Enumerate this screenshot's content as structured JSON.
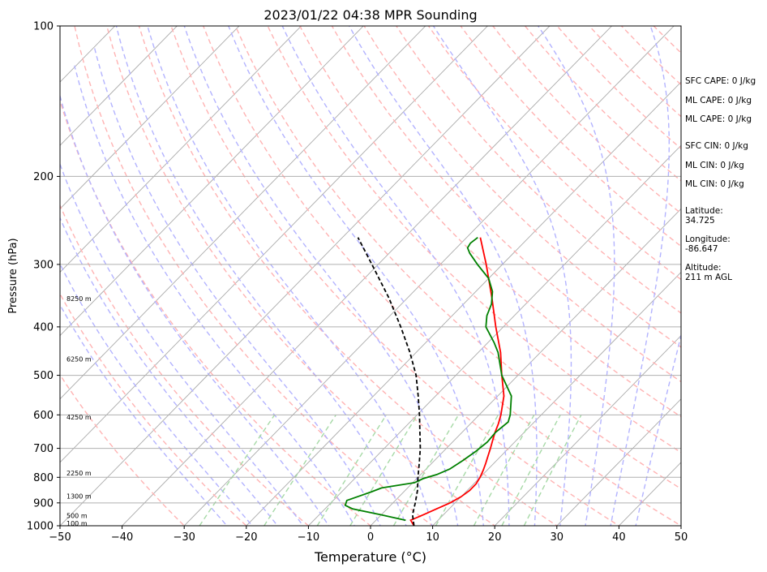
{
  "chart_data": {
    "type": "line",
    "title": "2023/01/22 04:38 MPR Sounding",
    "xlabel": "Temperature (°C)",
    "ylabel": "Pressure (hPa)",
    "xlim": [
      -50,
      50
    ],
    "ylim": [
      1000,
      100
    ],
    "yscale": "log",
    "x_ticks": [
      -50,
      -40,
      -30,
      -20,
      -10,
      0,
      10,
      20,
      30,
      40,
      50
    ],
    "y_ticks": [
      100,
      200,
      300,
      400,
      500,
      600,
      700,
      800,
      900,
      1000
    ],
    "grid": "horizontal at pressure ticks",
    "series": [
      {
        "color": "#ff0000",
        "points": [
          [
            1000,
            7.0
          ],
          [
            975,
            5.6
          ],
          [
            950,
            6.8
          ],
          [
            925,
            8.0
          ],
          [
            900,
            9.2
          ],
          [
            875,
            10.0
          ],
          [
            850,
            10.4
          ],
          [
            825,
            10.4
          ],
          [
            800,
            10.0
          ],
          [
            775,
            9.4
          ],
          [
            750,
            8.7
          ],
          [
            725,
            7.9
          ],
          [
            700,
            7.1
          ],
          [
            675,
            6.2
          ],
          [
            650,
            5.3
          ],
          [
            625,
            4.5
          ],
          [
            600,
            3.5
          ],
          [
            550,
            1.0
          ],
          [
            500,
            -2.6
          ],
          [
            450,
            -6.4
          ],
          [
            400,
            -11.2
          ],
          [
            350,
            -16.4
          ],
          [
            300,
            -22.6
          ],
          [
            265,
            -27.8
          ]
        ]
      },
      {
        "color": "#008000",
        "points": [
          [
            975,
            4.8
          ],
          [
            950,
            -0.2
          ],
          [
            925,
            -5.6
          ],
          [
            910,
            -7.3
          ],
          [
            890,
            -7.8
          ],
          [
            870,
            -6.3
          ],
          [
            855,
            -5.2
          ],
          [
            840,
            -4.2
          ],
          [
            820,
            0.3
          ],
          [
            805,
            1.0
          ],
          [
            790,
            2.6
          ],
          [
            770,
            3.8
          ],
          [
            740,
            4.6
          ],
          [
            710,
            5.2
          ],
          [
            680,
            5.6
          ],
          [
            650,
            5.4
          ],
          [
            620,
            5.8
          ],
          [
            600,
            5.0
          ],
          [
            550,
            2.2
          ],
          [
            500,
            -2.6
          ],
          [
            450,
            -6.8
          ],
          [
            430,
            -9.0
          ],
          [
            400,
            -12.8
          ],
          [
            380,
            -14.4
          ],
          [
            360,
            -15.5
          ],
          [
            340,
            -17.3
          ],
          [
            320,
            -20.0
          ],
          [
            300,
            -24.0
          ],
          [
            285,
            -27.0
          ],
          [
            278,
            -28.2
          ],
          [
            272,
            -28.5
          ],
          [
            265,
            -28.2
          ]
        ]
      },
      {
        "color": "#000000",
        "dashed": true,
        "points": [
          [
            1000,
            7.0
          ],
          [
            950,
            5.0
          ],
          [
            900,
            3.6
          ],
          [
            850,
            2.0
          ],
          [
            800,
            0.0
          ],
          [
            750,
            -2.0
          ],
          [
            700,
            -4.2
          ],
          [
            650,
            -6.8
          ],
          [
            600,
            -9.6
          ],
          [
            550,
            -12.8
          ],
          [
            500,
            -16.4
          ],
          [
            450,
            -21.0
          ],
          [
            400,
            -26.5
          ],
          [
            350,
            -33.0
          ],
          [
            300,
            -41.0
          ],
          [
            265,
            -47.5
          ]
        ]
      }
    ],
    "height_labels": [
      {
        "p": 351,
        "text": "8250 m"
      },
      {
        "p": 464,
        "text": "6250 m"
      },
      {
        "p": 606,
        "text": "4250 m"
      },
      {
        "p": 785,
        "text": "2250 m"
      },
      {
        "p": 872,
        "text": "1300 m"
      },
      {
        "p": 955,
        "text": "500 m"
      },
      {
        "p": 988,
        "text": "100 m"
      }
    ],
    "reference_lines": {
      "isotherm_color": "#aaaaaa",
      "dry_adiabat_color": "#ffb3b3",
      "moist_adiabat_color": "#b3b3ff",
      "mixing_ratio_color": "#a6d9a6"
    }
  },
  "side_panel": {
    "cape_cin": [
      "SFC CAPE: 0 J/kg",
      "ML CAPE: 0 J/kg",
      "ML CAPE: 0 J/kg",
      "SFC CIN: 0 J/kg",
      "ML CIN: 0 J/kg",
      "ML CIN: 0 J/kg"
    ],
    "latitude": "Latitude:\n34.725",
    "longitude": "Longitude:\n-86.647",
    "altitude": "Altitude:\n211 m AGL"
  }
}
